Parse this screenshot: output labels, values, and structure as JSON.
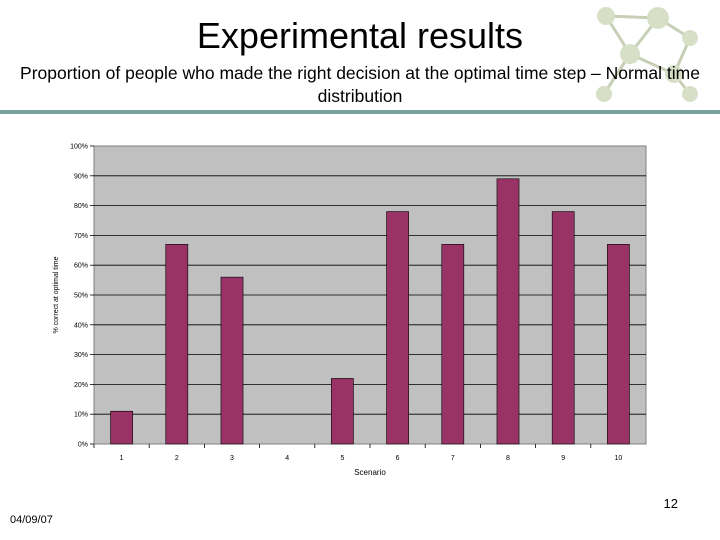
{
  "slide": {
    "title": "Experimental results",
    "subtitle": "Proportion of people who made the right decision at the optimal time step – Normal time distribution",
    "date": "04/09/07",
    "page_number": "12"
  },
  "logo": {
    "icon": "network-graph-logo"
  },
  "colors": {
    "bar": "#993366",
    "plot_background": "#c0c0c0",
    "accent_rule": "#7aa39d"
  },
  "chart_data": {
    "type": "bar",
    "categories": [
      "1",
      "2",
      "3",
      "4",
      "5",
      "6",
      "7",
      "8",
      "9",
      "10"
    ],
    "series": [
      {
        "values": [
          11,
          67,
          56,
          0,
          22,
          78,
          67,
          89,
          78,
          67
        ]
      }
    ],
    "xlabel": "Scenario",
    "ylabel": "% correct at optimal time",
    "yticks": [
      "0%",
      "10%",
      "20%",
      "30%",
      "40%",
      "50%",
      "60%",
      "70%",
      "80%",
      "90%",
      "100%"
    ],
    "ylim": [
      0,
      100
    ],
    "grid": true,
    "legend": "none"
  }
}
